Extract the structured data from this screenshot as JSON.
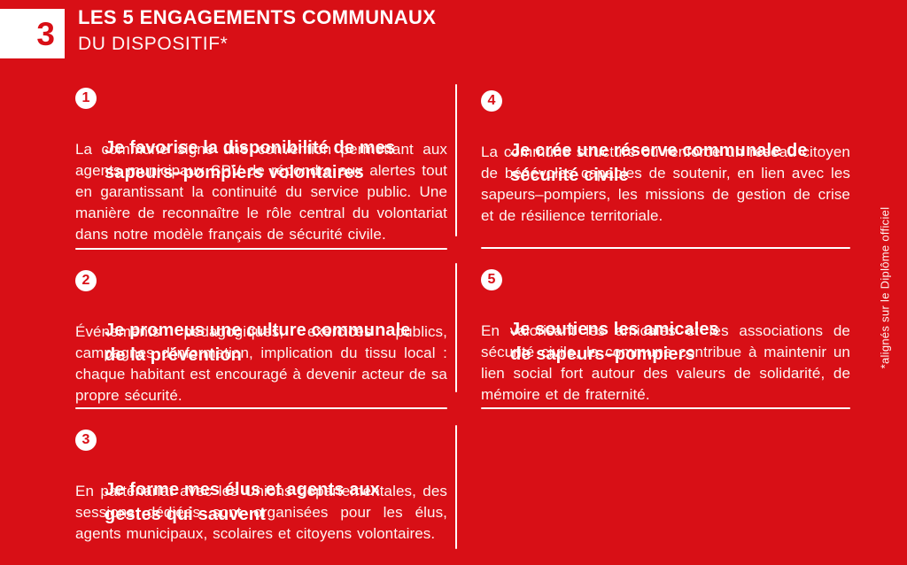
{
  "page": {
    "background_color": "#D80F16",
    "text_color": "#FFFFFF"
  },
  "header": {
    "section_number": "3",
    "title": "LES 5 ENGAGEMENTS COMMUNAUX",
    "subtitle": "DU DISPOSITIF*"
  },
  "items": [
    {
      "number": "1",
      "title": "Je favorise la disponibilité de mes\nsapeurs–pompiers volontaires",
      "body": "La commune signe une convention permettant aux agents municipaux SPV de répondre aux alertes tout en garantissant la continuité du service public. Une manière de reconnaître le rôle central du volontariat dans notre modèle français de sécurité civile."
    },
    {
      "number": "2",
      "title": "Je promeus une culture communale\nde la prévention",
      "body": "Événements pédagogiques, exercices publics, campagnes d’information, implication du tissu local : chaque habitant est encouragé à devenir acteur de sa propre sécurité."
    },
    {
      "number": "3",
      "title": "Je forme mes élus et agents aux\ngestes qui sauvent",
      "body": "En partenariat avec les Unions départementales, des sessions dédiées sont organisées pour les élus, agents municipaux, scolaires et citoyens volontaires."
    },
    {
      "number": "4",
      "title": "Je crée une réserve communale de\nsécurité civile",
      "body": "La commune structure ou renforce un réseau citoyen de bénévoles capables de soutenir, en lien avec les sapeurs–pompiers, les missions de gestion de crise et de résilience territoriale."
    },
    {
      "number": "5",
      "title": "Je soutiens les amicales\nde sapeurs–pompiers",
      "body": "En valorisant les amicales et les associations de sécurité civile, la commune contribue à maintenir un lien social fort autour des valeurs de solidarité, de mémoire et de fraternité."
    }
  ],
  "footnote_vertical": "*alignés sur le Diplôme officiel"
}
